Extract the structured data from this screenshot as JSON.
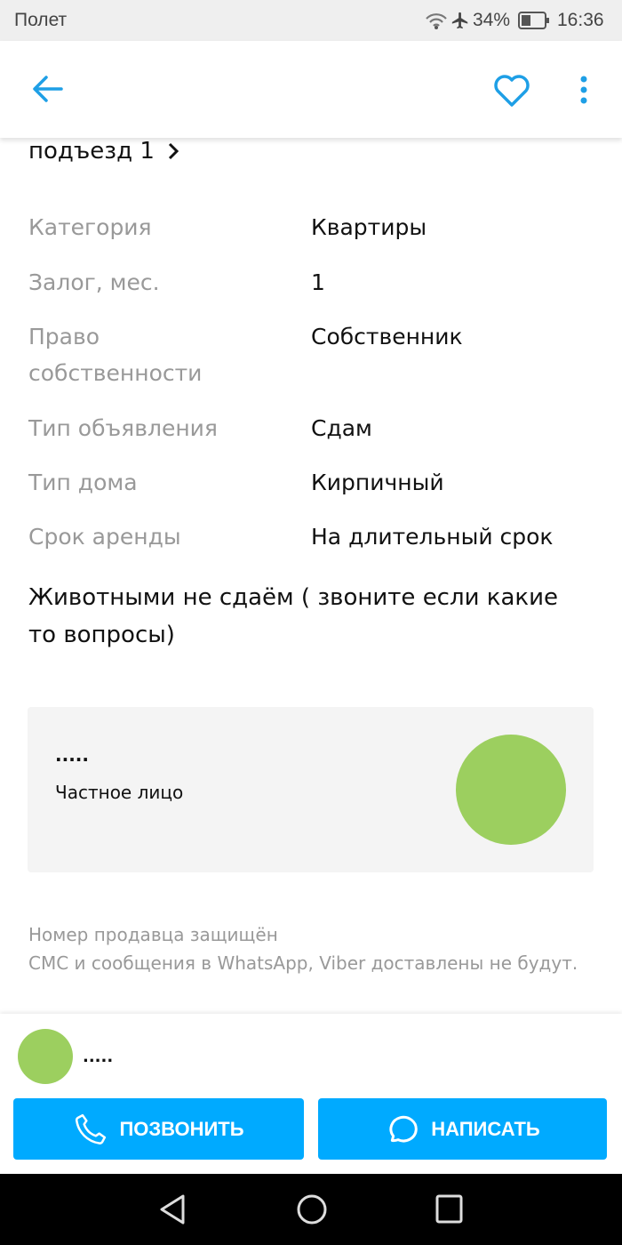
{
  "status_bar": {
    "carrier": "Полет",
    "battery": "34%",
    "time": "16:36"
  },
  "toolbar": {
    "back_icon": "arrow-left-icon",
    "favorite_icon": "heart-icon",
    "more_icon": "more-vertical-icon"
  },
  "address": {
    "text": "подъезд 1"
  },
  "details": [
    {
      "label": "Категория",
      "value": "Квартиры"
    },
    {
      "label": "Залог, мес.",
      "value": "1"
    },
    {
      "label": "Право собственности",
      "value": "Собственник"
    },
    {
      "label": "Тип объявления",
      "value": "Сдам"
    },
    {
      "label": "Тип дома",
      "value": "Кирпичный"
    },
    {
      "label": "Срок аренды",
      "value": "На длительный срок"
    }
  ],
  "description": "Животными не сдаём ( звоните если какие то вопросы)",
  "seller": {
    "name": ".....",
    "type": "Частное лицо",
    "avatar_color": "#9ccf5f"
  },
  "notice": {
    "line1": "Номер продавца защищён",
    "line2": "СМС и сообщения в WhatsApp, Viber доставлены не будут."
  },
  "bottom": {
    "name": ".....",
    "call_label": "ПОЗВОНИТЬ",
    "write_label": "НАПИСАТЬ",
    "accent": "#00aaff"
  }
}
